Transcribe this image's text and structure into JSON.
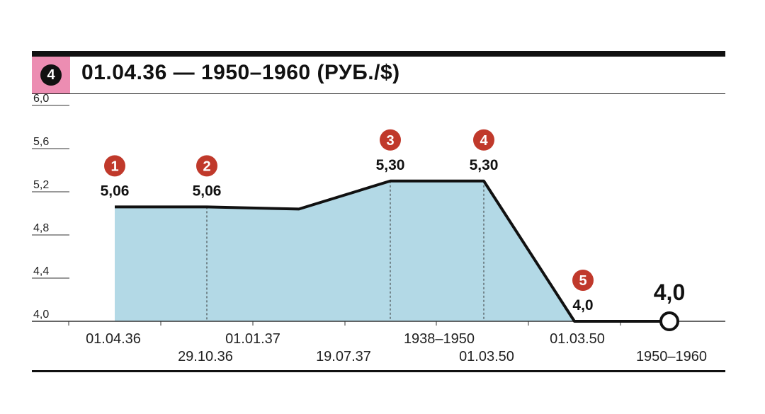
{
  "header": {
    "badge": "4",
    "title": "01.04.36 — 1950–1960 (РУБ./$)"
  },
  "colors": {
    "fill": "#b3d9e6",
    "line": "#111111",
    "marker": "#c0392b",
    "badge_bg": "#ec8db2"
  },
  "chart_data": {
    "type": "area",
    "title": "01.04.36 — 1950–1960 (РУБ./$)",
    "xlabel": "",
    "ylabel": "",
    "ylim": [
      4.0,
      6.0
    ],
    "y_ticks": [
      "4,0",
      "4,4",
      "4,8",
      "5,2",
      "5,6",
      "6,0"
    ],
    "y_tick_values": [
      4.0,
      4.4,
      4.8,
      5.2,
      5.6,
      6.0
    ],
    "x_labels": [
      "01.04.36",
      "29.10.36",
      "01.01.37",
      "19.07.37",
      "1938–1950",
      "01.03.50",
      "01.03.50",
      "1950–1960"
    ],
    "points": [
      {
        "x": "01.04.36",
        "y": 5.06
      },
      {
        "x": "29.10.36",
        "y": 5.06
      },
      {
        "x": "19.07.37",
        "y": 5.04
      },
      {
        "x": "1938–1950",
        "y": 5.3
      },
      {
        "x": "01.03.50",
        "y": 5.3
      },
      {
        "x": "01.03.50",
        "y": 4.0
      },
      {
        "x": "1950–1960",
        "y": 4.0
      }
    ],
    "markers": [
      {
        "num": "1",
        "label": "5,06",
        "point": 0
      },
      {
        "num": "2",
        "label": "5,06",
        "point": 1
      },
      {
        "num": "3",
        "label": "5,30",
        "point": 3
      },
      {
        "num": "4",
        "label": "5,30",
        "point": 4
      },
      {
        "num": "5",
        "label": "4,0",
        "point": 5
      }
    ],
    "end_label": "4,0",
    "grid": false
  }
}
